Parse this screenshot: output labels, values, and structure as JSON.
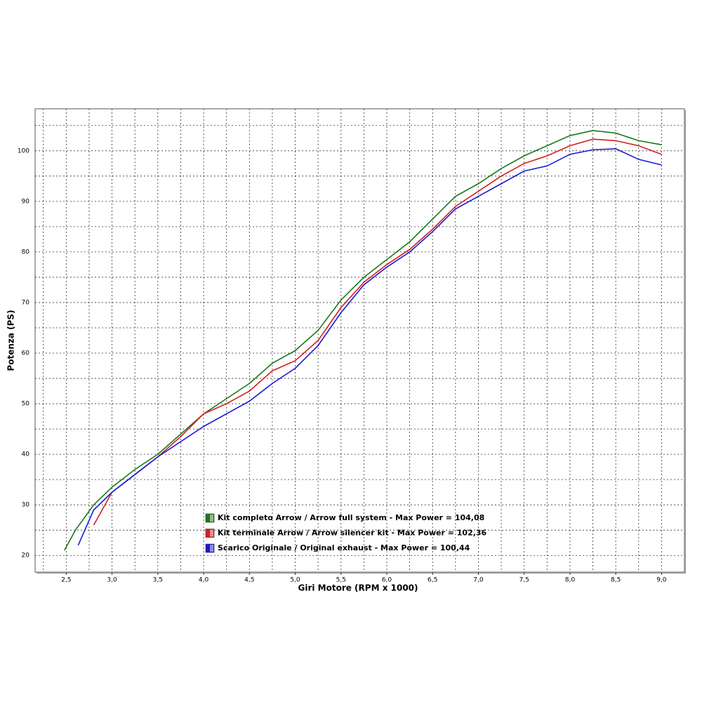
{
  "chart_data": {
    "type": "line",
    "x_label": "Giri Motore (RPM x 1000)",
    "y_label": "Potenza (PS)",
    "xlim": [
      2.16,
      9.25
    ],
    "ylim": [
      16.7,
      108.3
    ],
    "xticks": [
      {
        "value": 2.5,
        "label": "2,5"
      },
      {
        "value": 3.0,
        "label": "3,0"
      },
      {
        "value": 3.5,
        "label": "3,5"
      },
      {
        "value": 4.0,
        "label": "4,0"
      },
      {
        "value": 4.5,
        "label": "4,5"
      },
      {
        "value": 5.0,
        "label": "5,0"
      },
      {
        "value": 5.5,
        "label": "5,5"
      },
      {
        "value": 6.0,
        "label": "6,0"
      },
      {
        "value": 6.5,
        "label": "6,5"
      },
      {
        "value": 7.0,
        "label": "7,0"
      },
      {
        "value": 7.5,
        "label": "7,5"
      },
      {
        "value": 8.0,
        "label": "8,0"
      },
      {
        "value": 8.5,
        "label": "8,5"
      },
      {
        "value": 9.0,
        "label": "9,0"
      }
    ],
    "x_minor_ticks": [
      2.25,
      2.75,
      3.25,
      3.75,
      4.25,
      4.75,
      5.25,
      5.75,
      6.25,
      6.75,
      7.25,
      7.75,
      8.25,
      8.75
    ],
    "yticks": [
      20,
      30,
      40,
      50,
      60,
      70,
      80,
      90,
      100
    ],
    "y_minor_ticks": [
      25,
      35,
      45,
      55,
      65,
      75,
      85,
      95,
      105
    ],
    "grid": true,
    "series": [
      {
        "name": "Kit completo Arrow / Arrow full system - Max Power = 104,08",
        "color": "#1a7a1a",
        "x": [
          2.48,
          2.6,
          2.8,
          3.0,
          3.25,
          3.5,
          3.75,
          4.0,
          4.25,
          4.5,
          4.75,
          5.0,
          5.25,
          5.5,
          5.75,
          6.0,
          6.25,
          6.5,
          6.75,
          7.0,
          7.25,
          7.5,
          7.75,
          8.0,
          8.25,
          8.5,
          8.75,
          9.0
        ],
        "values": [
          21,
          25,
          30,
          33.5,
          37,
          40,
          44,
          48,
          51,
          54,
          58,
          60.5,
          64.5,
          70.5,
          75,
          78.5,
          82,
          86.5,
          91,
          93.5,
          96.5,
          99,
          101,
          103,
          104,
          103.5,
          102,
          101.2
        ]
      },
      {
        "name": "Kit terminale Arrow / Arrow silencer kit - Max Power = 102,36",
        "color": "#d42020",
        "x": [
          2.8,
          3.0,
          3.25,
          3.5,
          3.75,
          4.0,
          4.25,
          4.5,
          4.75,
          5.0,
          5.25,
          5.5,
          5.75,
          6.0,
          6.25,
          6.5,
          6.75,
          7.0,
          7.25,
          7.5,
          7.75,
          8.0,
          8.25,
          8.5,
          8.75,
          9.0
        ],
        "values": [
          26,
          32.5,
          36,
          39.5,
          43.5,
          48,
          50,
          52.5,
          56.5,
          58.5,
          62.5,
          69,
          74,
          77.5,
          80.5,
          84.5,
          89,
          92,
          95,
          97.5,
          99,
          101,
          102.3,
          102,
          101,
          99.3
        ]
      },
      {
        "name": "Scarico Originale / Original exhaust - Max Power = 100,44",
        "color": "#1a1ad4",
        "x": [
          2.63,
          2.8,
          3.0,
          3.25,
          3.5,
          3.75,
          4.0,
          4.25,
          4.5,
          4.75,
          5.0,
          5.25,
          5.5,
          5.75,
          6.0,
          6.25,
          6.5,
          6.75,
          7.0,
          7.25,
          7.5,
          7.75,
          8.0,
          8.25,
          8.5,
          8.75,
          9.0
        ],
        "values": [
          22,
          29,
          32.5,
          36,
          39.5,
          42.5,
          45.5,
          48,
          50.5,
          54,
          57,
          61.5,
          68,
          73.5,
          77,
          80,
          84,
          88.5,
          91,
          93.5,
          96,
          97,
          99.3,
          100.2,
          100.4,
          98.3,
          97.2
        ]
      }
    ]
  }
}
